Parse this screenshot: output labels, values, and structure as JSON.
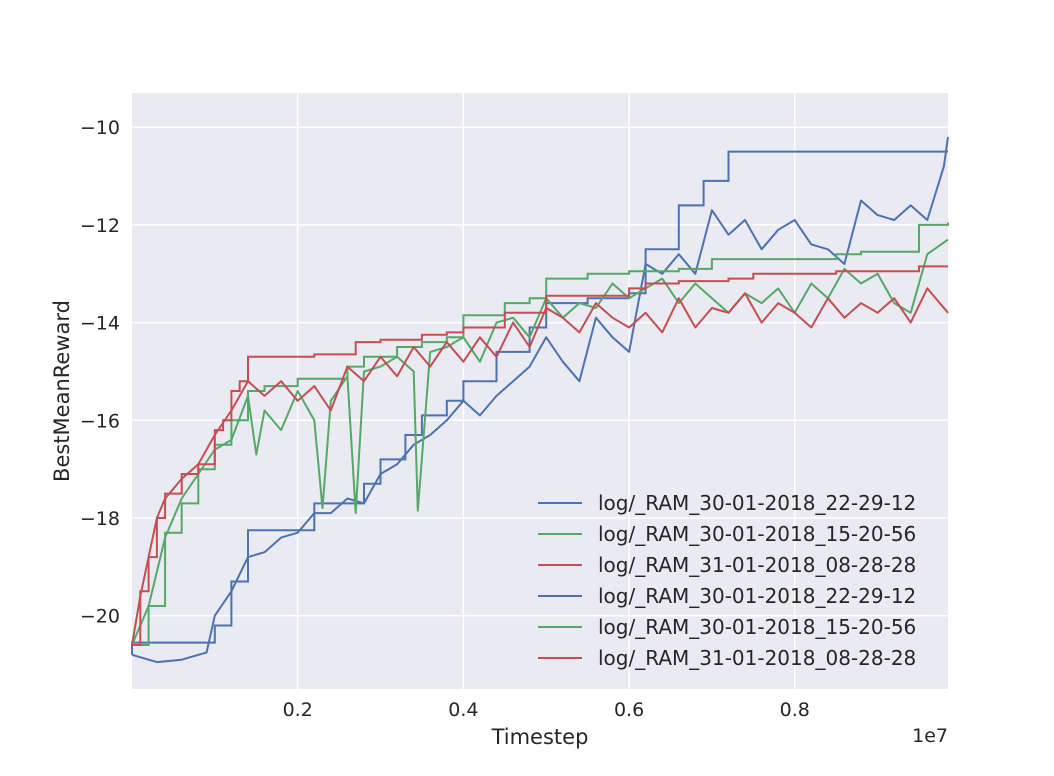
{
  "chart_data": {
    "type": "line",
    "title": "",
    "xlabel": "Timestep",
    "ylabel": "BestMeanReward",
    "x_offset_label": "1e7",
    "xlim": [
      0.0,
      0.985
    ],
    "ylim": [
      -21.5,
      -9.3
    ],
    "x_ticks": [
      0.2,
      0.4,
      0.6,
      0.8
    ],
    "x_tick_labels": [
      "0.2",
      "0.4",
      "0.6",
      "0.8"
    ],
    "y_ticks": [
      -20,
      -18,
      -16,
      -14,
      -12,
      -10
    ],
    "y_tick_labels": [
      "−20",
      "−18",
      "−16",
      "−14",
      "−12",
      "−10"
    ],
    "grid": true,
    "legend_placement": "lower-right",
    "colors": {
      "blue": "#4c72b0",
      "green": "#55a868",
      "red": "#c44e52",
      "plot_bg": "#eaeaf2",
      "grid": "#ffffff"
    },
    "series": [
      {
        "name": "log/_RAM_30-01-2018_22-29-12",
        "color": "#4c72b0",
        "best_x": [
          0.0,
          0.0,
          0.08,
          0.1,
          0.12,
          0.14,
          0.2,
          0.22,
          0.26,
          0.28,
          0.3,
          0.33,
          0.35,
          0.38,
          0.4,
          0.44,
          0.48,
          0.5,
          0.55,
          0.6,
          0.62,
          0.66,
          0.69,
          0.72,
          0.985
        ],
        "best_y": [
          -20.8,
          -20.55,
          -20.55,
          -20.2,
          -19.3,
          -18.25,
          -18.25,
          -17.7,
          -17.7,
          -17.3,
          -16.8,
          -16.3,
          -15.9,
          -15.6,
          -15.2,
          -14.6,
          -14.1,
          -13.6,
          -13.5,
          -13.4,
          -12.5,
          -11.6,
          -11.1,
          -10.5,
          -10.5
        ],
        "current_x": [
          0.0,
          0.03,
          0.06,
          0.09,
          0.1,
          0.12,
          0.14,
          0.16,
          0.18,
          0.2,
          0.22,
          0.24,
          0.26,
          0.28,
          0.3,
          0.32,
          0.34,
          0.36,
          0.38,
          0.4,
          0.42,
          0.44,
          0.46,
          0.48,
          0.5,
          0.52,
          0.54,
          0.56,
          0.58,
          0.6,
          0.62,
          0.64,
          0.66,
          0.68,
          0.7,
          0.72,
          0.74,
          0.76,
          0.78,
          0.8,
          0.82,
          0.84,
          0.86,
          0.88,
          0.9,
          0.92,
          0.94,
          0.96,
          0.98,
          0.985
        ],
        "current_y": [
          -20.8,
          -20.95,
          -20.9,
          -20.75,
          -20.0,
          -19.5,
          -18.8,
          -18.7,
          -18.4,
          -18.3,
          -17.9,
          -17.9,
          -17.6,
          -17.7,
          -17.1,
          -16.9,
          -16.5,
          -16.3,
          -16.0,
          -15.6,
          -15.9,
          -15.5,
          -15.2,
          -14.9,
          -14.3,
          -14.8,
          -15.2,
          -13.9,
          -14.3,
          -14.6,
          -12.8,
          -13.0,
          -12.6,
          -13.0,
          -11.7,
          -12.2,
          -11.9,
          -12.5,
          -12.1,
          -11.9,
          -12.4,
          -12.5,
          -12.8,
          -11.5,
          -11.8,
          -11.9,
          -11.6,
          -11.9,
          -10.8,
          -10.2
        ]
      },
      {
        "name": "log/_RAM_30-01-2018_15-20-56",
        "color": "#55a868",
        "best_x": [
          0.0,
          0.02,
          0.04,
          0.06,
          0.08,
          0.1,
          0.12,
          0.14,
          0.16,
          0.2,
          0.24,
          0.26,
          0.28,
          0.32,
          0.35,
          0.38,
          0.4,
          0.45,
          0.48,
          0.5,
          0.55,
          0.6,
          0.66,
          0.7,
          0.75,
          0.8,
          0.85,
          0.88,
          0.95,
          0.985
        ],
        "best_y": [
          -20.6,
          -19.8,
          -18.3,
          -17.7,
          -17.0,
          -16.5,
          -16.0,
          -15.4,
          -15.3,
          -15.15,
          -15.15,
          -14.9,
          -14.7,
          -14.5,
          -14.4,
          -14.3,
          -13.85,
          -13.6,
          -13.5,
          -13.1,
          -13.0,
          -12.95,
          -12.9,
          -12.7,
          -12.7,
          -12.7,
          -12.6,
          -12.55,
          -12.0,
          -11.95
        ],
        "current_x": [
          0.0,
          0.02,
          0.04,
          0.06,
          0.08,
          0.1,
          0.12,
          0.14,
          0.15,
          0.16,
          0.18,
          0.2,
          0.22,
          0.23,
          0.24,
          0.26,
          0.27,
          0.28,
          0.3,
          0.32,
          0.34,
          0.345,
          0.36,
          0.38,
          0.4,
          0.42,
          0.44,
          0.46,
          0.48,
          0.5,
          0.52,
          0.54,
          0.56,
          0.58,
          0.6,
          0.62,
          0.64,
          0.66,
          0.68,
          0.7,
          0.72,
          0.74,
          0.76,
          0.78,
          0.8,
          0.82,
          0.84,
          0.86,
          0.88,
          0.9,
          0.92,
          0.94,
          0.96,
          0.985
        ],
        "current_y": [
          -20.6,
          -19.8,
          -18.4,
          -17.6,
          -17.1,
          -16.6,
          -16.4,
          -15.5,
          -16.7,
          -15.8,
          -16.2,
          -15.4,
          -16.0,
          -17.8,
          -15.6,
          -15.1,
          -17.9,
          -15.0,
          -14.9,
          -14.7,
          -15.0,
          -17.85,
          -14.6,
          -14.5,
          -14.3,
          -14.8,
          -14.0,
          -13.9,
          -14.3,
          -13.5,
          -13.9,
          -13.6,
          -13.7,
          -13.2,
          -13.5,
          -13.3,
          -13.1,
          -13.6,
          -13.2,
          -13.5,
          -13.8,
          -13.4,
          -13.6,
          -13.3,
          -13.8,
          -13.2,
          -13.5,
          -12.9,
          -13.2,
          -13.0,
          -13.6,
          -13.8,
          -12.6,
          -12.3
        ]
      },
      {
        "name": "log/_RAM_31-01-2018_08-28-28",
        "color": "#c44e52",
        "best_x": [
          0.0,
          0.01,
          0.02,
          0.03,
          0.04,
          0.06,
          0.08,
          0.1,
          0.11,
          0.12,
          0.13,
          0.14,
          0.18,
          0.22,
          0.25,
          0.27,
          0.3,
          0.35,
          0.38,
          0.4,
          0.45,
          0.5,
          0.6,
          0.62,
          0.66,
          0.68,
          0.72,
          0.75,
          0.85,
          0.95,
          0.985
        ],
        "best_y": [
          -20.6,
          -19.5,
          -18.8,
          -18.0,
          -17.5,
          -17.1,
          -16.9,
          -16.2,
          -16.0,
          -15.4,
          -15.2,
          -14.7,
          -14.7,
          -14.65,
          -14.65,
          -14.4,
          -14.35,
          -14.25,
          -14.2,
          -14.1,
          -13.8,
          -13.45,
          -13.3,
          -13.2,
          -13.15,
          -13.15,
          -13.1,
          -13.0,
          -12.95,
          -12.85,
          -12.85
        ],
        "current_x": [
          0.0,
          0.01,
          0.02,
          0.03,
          0.04,
          0.06,
          0.08,
          0.1,
          0.12,
          0.14,
          0.16,
          0.18,
          0.2,
          0.22,
          0.24,
          0.26,
          0.28,
          0.3,
          0.32,
          0.34,
          0.36,
          0.38,
          0.4,
          0.42,
          0.44,
          0.46,
          0.48,
          0.5,
          0.52,
          0.54,
          0.56,
          0.58,
          0.6,
          0.62,
          0.64,
          0.66,
          0.68,
          0.7,
          0.72,
          0.74,
          0.76,
          0.78,
          0.8,
          0.82,
          0.84,
          0.86,
          0.88,
          0.9,
          0.92,
          0.94,
          0.96,
          0.985
        ],
        "current_y": [
          -20.6,
          -19.6,
          -18.8,
          -18.0,
          -17.6,
          -17.2,
          -16.9,
          -16.3,
          -15.8,
          -15.2,
          -15.5,
          -15.2,
          -15.6,
          -15.3,
          -15.8,
          -14.9,
          -15.2,
          -14.7,
          -15.1,
          -14.5,
          -14.9,
          -14.4,
          -14.8,
          -14.3,
          -14.7,
          -14.0,
          -14.5,
          -13.7,
          -13.9,
          -14.2,
          -13.6,
          -13.9,
          -14.1,
          -13.8,
          -14.2,
          -13.5,
          -14.1,
          -13.7,
          -13.8,
          -13.4,
          -14.0,
          -13.6,
          -13.8,
          -14.1,
          -13.5,
          -13.9,
          -13.6,
          -13.8,
          -13.5,
          -14.0,
          -13.3,
          -13.8
        ]
      }
    ],
    "legend": [
      {
        "label": "log/_RAM_30-01-2018_22-29-12",
        "color": "#4c72b0"
      },
      {
        "label": "log/_RAM_30-01-2018_15-20-56",
        "color": "#55a868"
      },
      {
        "label": "log/_RAM_31-01-2018_08-28-28",
        "color": "#c44e52"
      },
      {
        "label": "log/_RAM_30-01-2018_22-29-12",
        "color": "#4c72b0"
      },
      {
        "label": "log/_RAM_30-01-2018_15-20-56",
        "color": "#55a868"
      },
      {
        "label": "log/_RAM_31-01-2018_08-28-28",
        "color": "#c44e52"
      }
    ]
  }
}
